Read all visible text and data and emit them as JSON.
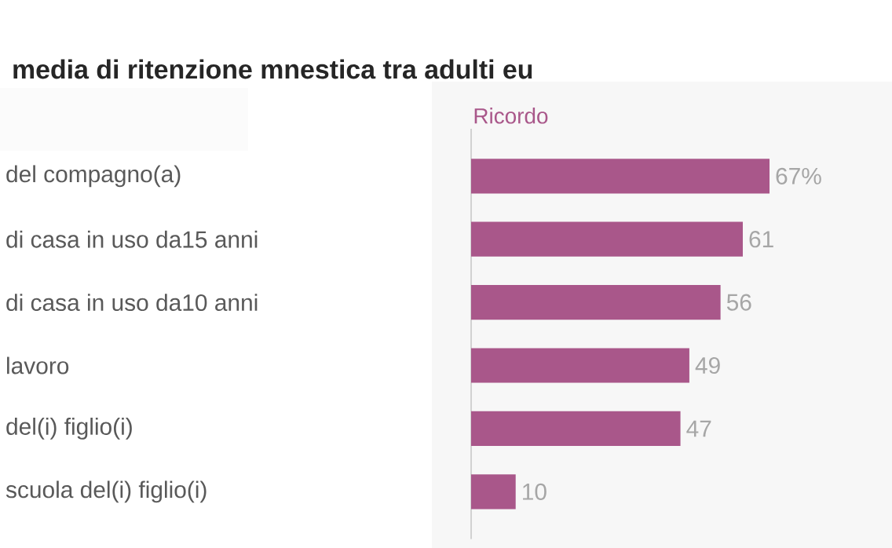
{
  "chart_data": {
    "type": "bar",
    "orientation": "horizontal",
    "title": "media di ritenzione mnestica tra adulti eu",
    "categories": [
      "del compagno(a)",
      "di casa in uso da15 anni",
      "di casa in uso da10 anni",
      "lavoro",
      "del(i) figlio(i)",
      "scuola del(i) figlio(i)"
    ],
    "series": [
      {
        "name": "Ricordo",
        "color": "#a9578a",
        "values": [
          67,
          61,
          56,
          49,
          47,
          10
        ],
        "value_labels": [
          "67%",
          "61",
          "56",
          "49",
          "47",
          "10"
        ]
      }
    ]
  }
}
